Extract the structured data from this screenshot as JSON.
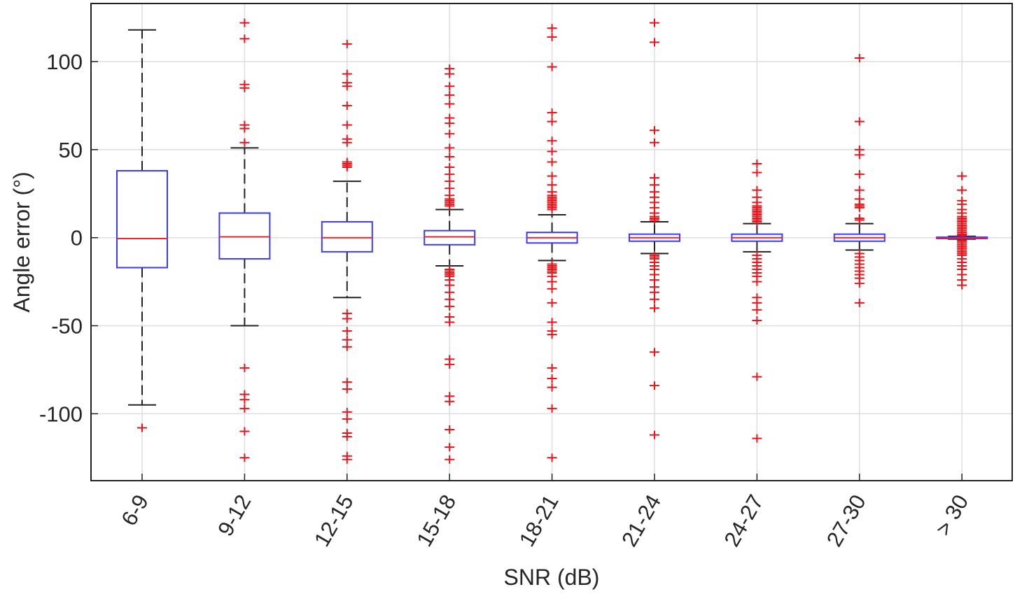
{
  "chart_data": {
    "type": "boxplot",
    "title": "",
    "xlabel": "SNR (dB)",
    "ylabel": "Angle error (°)",
    "ylim": [
      -138,
      133
    ],
    "yticks": [
      -100,
      -50,
      0,
      50,
      100
    ],
    "ytick_labels": [
      "-100",
      "-50",
      "0",
      "50",
      "100"
    ],
    "grid": true,
    "colors": {
      "box": "#3a3aff",
      "median": "#e8262a",
      "whisker": "#222222",
      "outlier": "#e8141a",
      "grid": "#dedede",
      "axis": "#222222"
    },
    "categories": [
      "6-9",
      "9-12",
      "12-15",
      "15-18",
      "18-21",
      "21-24",
      "24-27",
      "27-30",
      "> 30"
    ],
    "boxes": [
      {
        "q1": -17,
        "median": -0.5,
        "q3": 38,
        "whisker_low": -95,
        "whisker_high": 118,
        "outliers": [
          -108
        ]
      },
      {
        "q1": -12,
        "median": 0.5,
        "q3": 14,
        "whisker_low": -50,
        "whisker_high": 51,
        "outliers": [
          122,
          113,
          87,
          85,
          64,
          62,
          54,
          -74,
          -89,
          -92,
          -97,
          -110,
          -125
        ]
      },
      {
        "q1": -8,
        "median": 0,
        "q3": 9,
        "whisker_low": -34,
        "whisker_high": 32,
        "outliers": [
          110,
          93,
          88,
          86,
          75,
          64,
          56,
          54,
          43,
          42,
          41,
          40,
          -43,
          -46,
          -53,
          -58,
          -62,
          -82,
          -86,
          -99,
          -103,
          -111,
          -113,
          -124,
          -126
        ]
      },
      {
        "q1": -4,
        "median": 0.5,
        "q3": 4,
        "whisker_low": -16,
        "whisker_high": 16,
        "outliers": [
          96,
          93,
          86,
          81,
          76,
          68,
          65,
          59,
          51,
          46,
          40,
          36,
          32,
          28,
          24,
          22,
          21,
          20,
          19,
          18,
          -18,
          -19,
          -20,
          -21,
          -22,
          -24,
          -27,
          -31,
          -35,
          -39,
          -45,
          -48,
          -69,
          -72,
          -90,
          -93,
          -109,
          -119,
          -126
        ]
      },
      {
        "q1": -3,
        "median": 0,
        "q3": 3,
        "whisker_low": -13,
        "whisker_high": 13,
        "outliers": [
          119,
          114,
          97,
          71,
          66,
          55,
          49,
          43,
          35,
          30,
          26,
          24,
          23,
          22,
          21,
          20,
          19,
          18,
          17,
          16,
          -15,
          -16,
          -17,
          -18,
          -19,
          -20,
          -22,
          -25,
          -29,
          -37,
          -48,
          -53,
          -55,
          -74,
          -80,
          -85,
          -97,
          -125
        ]
      },
      {
        "q1": -2,
        "median": 0,
        "q3": 2,
        "whisker_low": -9,
        "whisker_high": 9,
        "outliers": [
          122,
          111,
          61,
          54,
          34,
          30,
          26,
          23,
          20,
          17,
          14,
          12,
          11,
          10,
          -10,
          -11,
          -12,
          -14,
          -16,
          -18,
          -21,
          -24,
          -28,
          -31,
          -35,
          -40,
          -65,
          -84,
          -112
        ]
      },
      {
        "q1": -2,
        "median": 0,
        "q3": 2,
        "whisker_low": -8,
        "whisker_high": 8,
        "outliers": [
          42,
          37,
          27,
          23,
          20,
          18,
          17,
          16,
          15,
          14,
          13,
          12,
          11,
          10,
          9,
          -10,
          -12,
          -14,
          -16,
          -18,
          -20,
          -22,
          -25,
          -34,
          -37,
          -41,
          -47,
          -79,
          -114
        ]
      },
      {
        "q1": -2,
        "median": 0,
        "q3": 2,
        "whisker_low": -7,
        "whisker_high": 8,
        "outliers": [
          102,
          66,
          50,
          47,
          36,
          27,
          22,
          19,
          18,
          17,
          11,
          10,
          -9,
          -11,
          -13,
          -15,
          -17,
          -19,
          -21,
          -23,
          -26,
          -37
        ]
      },
      {
        "q1": -0.3,
        "median": 0,
        "q3": 0.3,
        "whisker_low": -0.8,
        "whisker_high": 0.8,
        "outliers": [
          35,
          27,
          21,
          19,
          16,
          14,
          12,
          11,
          10,
          9,
          8,
          7,
          6,
          5,
          4,
          3,
          2,
          1.5,
          -1.5,
          -2,
          -3,
          -4,
          -5,
          -6,
          -7,
          -8,
          -9,
          -10,
          -12,
          -14,
          -16,
          -18,
          -21,
          -24,
          -27
        ]
      }
    ]
  }
}
